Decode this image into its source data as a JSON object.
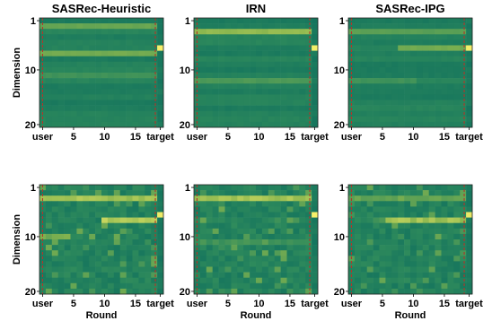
{
  "chart_data": {
    "type": "heatmap",
    "columns": [
      "user",
      "1",
      "2",
      "3",
      "4",
      "5",
      "6",
      "7",
      "8",
      "9",
      "10",
      "11",
      "12",
      "13",
      "14",
      "15",
      "16",
      "17",
      "18",
      "target"
    ],
    "x_tick_labels": [
      "user",
      "5",
      "10",
      "15",
      "target"
    ],
    "y_tick_labels": [
      "1",
      "10",
      "20"
    ],
    "y_range": [
      1,
      20
    ],
    "colormap": [
      "#0d6e5e",
      "#2e8a5c",
      "#86b44e",
      "#f8f06a"
    ],
    "titles": [
      "SASRec-Heuristic",
      "IRN",
      "SASRec-IPG"
    ],
    "ylabel": "Dimension",
    "xlabel": "Round",
    "vertical_markers": "red dashed lines at user and target columns",
    "panels": [
      {
        "row": 1,
        "title": "SASRec-Heuristic",
        "highlights": [
          {
            "dim": 2,
            "cols": "user-18",
            "level": 0.55
          },
          {
            "dim": 7,
            "cols": "user-18",
            "level": 0.6
          },
          {
            "dim": 11,
            "cols": "user-18",
            "level": 0.4
          },
          {
            "dim": 6,
            "cols": "target",
            "level": 1.0
          }
        ]
      },
      {
        "row": 1,
        "title": "IRN",
        "highlights": [
          {
            "dim": 3,
            "cols": "user-18",
            "level": 0.7
          },
          {
            "dim": 12,
            "cols": "user-18",
            "level": 0.45
          },
          {
            "dim": 6,
            "cols": "target",
            "level": 1.0
          }
        ]
      },
      {
        "row": 1,
        "title": "SASRec-IPG",
        "highlights": [
          {
            "dim": 3,
            "cols": "user-18",
            "level": 0.5
          },
          {
            "dim": 6,
            "cols": "8-18",
            "level": 0.6
          },
          {
            "dim": 12,
            "cols": "user-10",
            "level": 0.4
          },
          {
            "dim": 6,
            "cols": "target",
            "level": 1.0
          }
        ]
      },
      {
        "row": 2,
        "title": "",
        "highlights": [
          {
            "dim": 3,
            "cols": "user-18",
            "level": 0.75
          },
          {
            "dim": 7,
            "cols": "10-18",
            "level": 0.8
          },
          {
            "dim": 10,
            "cols": "user-4",
            "level": 0.6
          },
          {
            "dim": 6,
            "cols": "target",
            "level": 1.0
          }
        ]
      },
      {
        "row": 2,
        "title": "",
        "highlights": [
          {
            "dim": 3,
            "cols": "user-18",
            "level": 0.75
          },
          {
            "dim": 11,
            "cols": "user-18",
            "level": 0.4
          },
          {
            "dim": 6,
            "cols": "target",
            "level": 1.0
          }
        ]
      },
      {
        "row": 2,
        "title": "",
        "highlights": [
          {
            "dim": 3,
            "cols": "user-18",
            "level": 0.55
          },
          {
            "dim": 7,
            "cols": "6-18",
            "level": 0.75
          },
          {
            "dim": 6,
            "cols": "target",
            "level": 1.0
          }
        ]
      }
    ]
  }
}
